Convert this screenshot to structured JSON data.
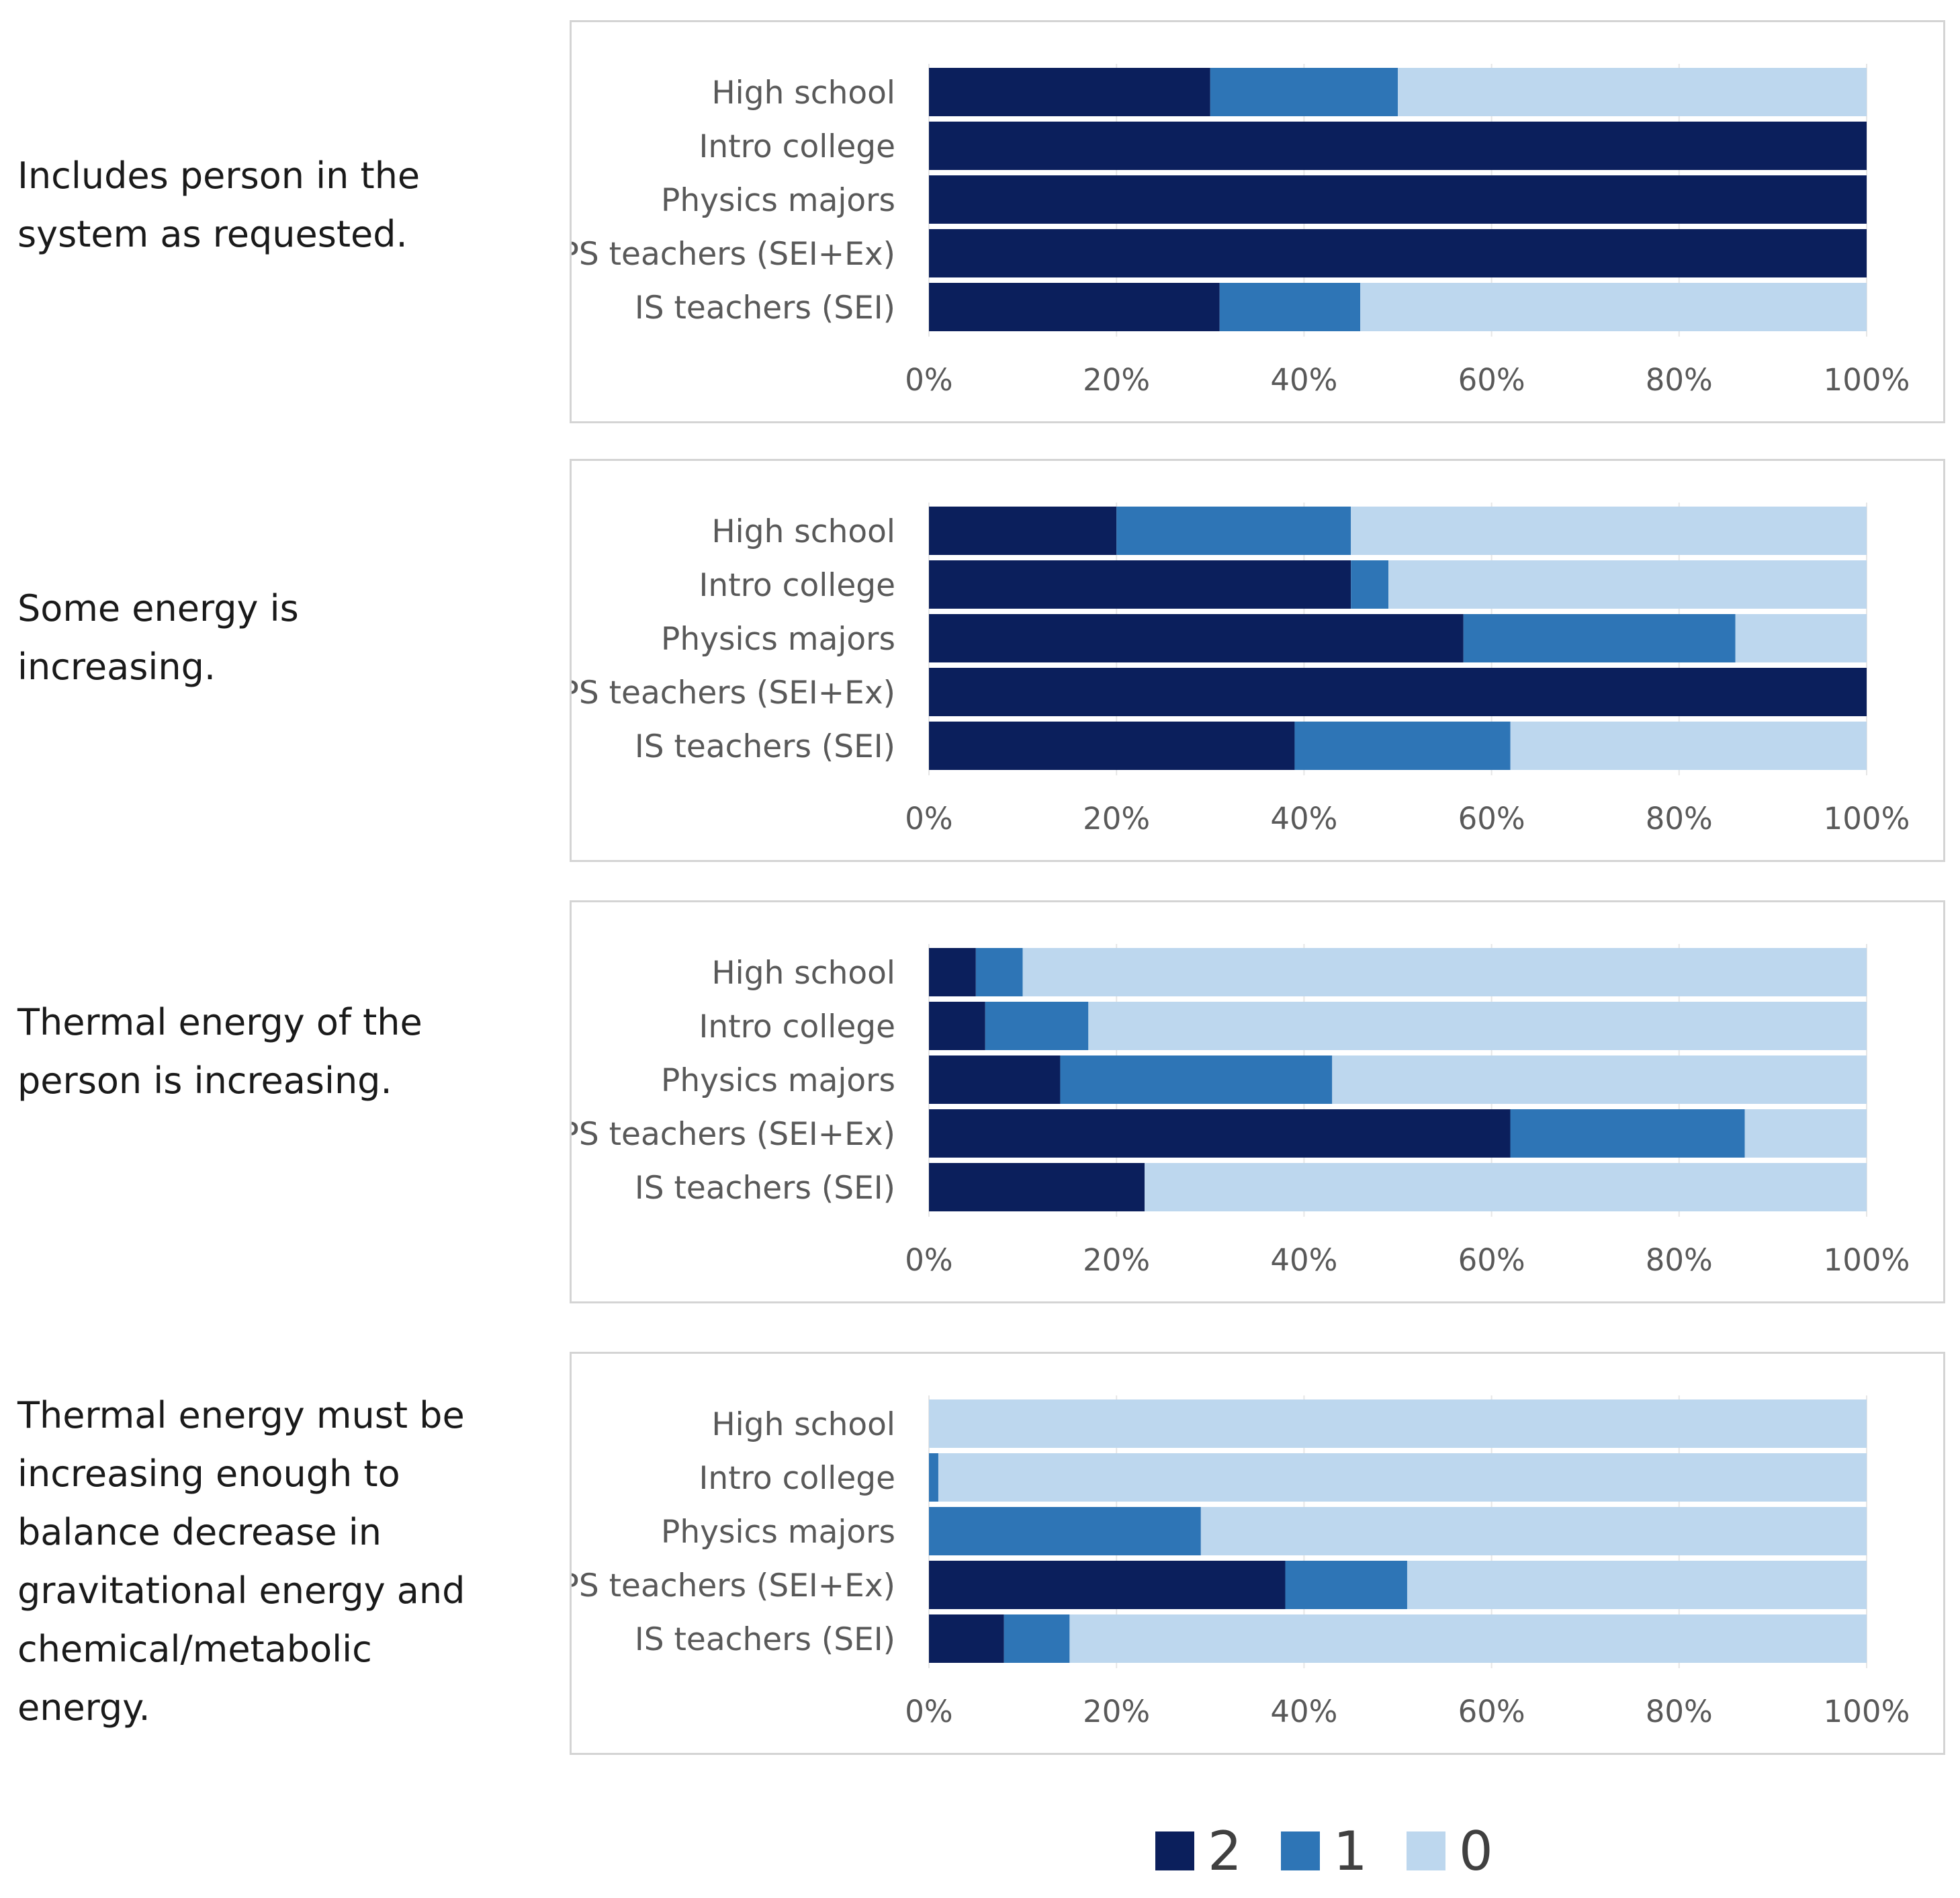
{
  "legend": {
    "items": [
      {
        "label": "2",
        "color": "#0b1f5c"
      },
      {
        "label": "1",
        "color": "#2e75b6"
      },
      {
        "label": "0",
        "color": "#bdd7ee"
      }
    ]
  },
  "criteria": [
    {
      "label": "Includes person in the system as requested."
    },
    {
      "label": "Some energy is increasing."
    },
    {
      "label": "Thermal energy of the person is increasing."
    },
    {
      "label": "Thermal energy must be increasing enough to balance decrease in gravitational energy and chemical/metabolic energy."
    }
  ],
  "chart_data": [
    {
      "type": "bar",
      "orientation": "horizontal",
      "stacked": true,
      "title": "Includes person in the system as requested.",
      "categories": [
        "High school",
        "Intro college",
        "Physics majors",
        "PS teachers (SEI+Ex)",
        "IS teachers (SEI)"
      ],
      "series": [
        {
          "name": "2",
          "values": [
            30,
            100,
            100,
            100,
            31
          ]
        },
        {
          "name": "1",
          "values": [
            20,
            0,
            0,
            0,
            15
          ]
        },
        {
          "name": "0",
          "values": [
            50,
            0,
            0,
            0,
            54
          ]
        }
      ],
      "xlim": [
        0,
        100
      ],
      "xticks": [
        "0%",
        "20%",
        "40%",
        "60%",
        "80%",
        "100%"
      ]
    },
    {
      "type": "bar",
      "orientation": "horizontal",
      "stacked": true,
      "title": "Some energy is increasing.",
      "categories": [
        "High school",
        "Intro college",
        "Physics majors",
        "PS teachers (SEI+Ex)",
        "IS teachers (SEI)"
      ],
      "series": [
        {
          "name": "2",
          "values": [
            20,
            45,
            57,
            100,
            39
          ]
        },
        {
          "name": "1",
          "values": [
            25,
            4,
            29,
            0,
            23
          ]
        },
        {
          "name": "0",
          "values": [
            55,
            51,
            14,
            0,
            38
          ]
        }
      ],
      "xlim": [
        0,
        100
      ],
      "xticks": [
        "0%",
        "20%",
        "40%",
        "60%",
        "80%",
        "100%"
      ]
    },
    {
      "type": "bar",
      "orientation": "horizontal",
      "stacked": true,
      "title": "Thermal energy of the person is increasing.",
      "categories": [
        "High school",
        "Intro college",
        "Physics majors",
        "PS teachers (SEI+Ex)",
        "IS teachers (SEI)"
      ],
      "series": [
        {
          "name": "2",
          "values": [
            5,
            6,
            14,
            62,
            23
          ]
        },
        {
          "name": "1",
          "values": [
            5,
            11,
            29,
            25,
            0
          ]
        },
        {
          "name": "0",
          "values": [
            90,
            83,
            57,
            13,
            77
          ]
        }
      ],
      "xlim": [
        0,
        100
      ],
      "xticks": [
        "0%",
        "20%",
        "40%",
        "60%",
        "80%",
        "100%"
      ]
    },
    {
      "type": "bar",
      "orientation": "horizontal",
      "stacked": true,
      "title": "Thermal energy must be increasing enough to balance decrease in gravitational energy and chemical/metabolic energy.",
      "categories": [
        "High school",
        "Intro college",
        "Physics majors",
        "PS teachers (SEI+Ex)",
        "IS teachers (SEI)"
      ],
      "series": [
        {
          "name": "2",
          "values": [
            0,
            0,
            0,
            38,
            8
          ]
        },
        {
          "name": "1",
          "values": [
            0,
            1,
            29,
            13,
            7
          ]
        },
        {
          "name": "0",
          "values": [
            100,
            99,
            71,
            49,
            85
          ]
        }
      ],
      "xlim": [
        0,
        100
      ],
      "xticks": [
        "0%",
        "20%",
        "40%",
        "60%",
        "80%",
        "100%"
      ]
    }
  ]
}
